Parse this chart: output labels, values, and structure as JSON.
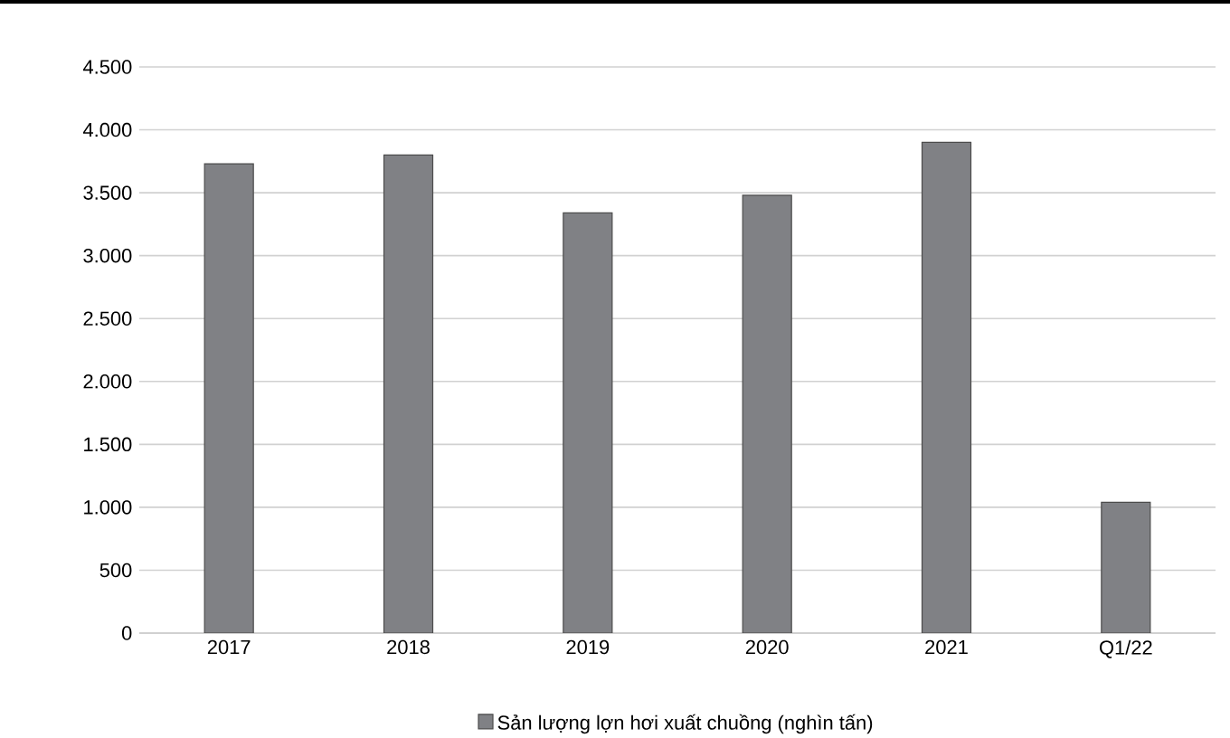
{
  "chart_data": {
    "type": "bar",
    "categories": [
      "2017",
      "2018",
      "2019",
      "2020",
      "2021",
      "Q1/22"
    ],
    "series": [
      {
        "name": "Sản lượng lợn hơi xuất chuồng (nghìn tấn)",
        "color": "#808185",
        "values": [
          3730,
          3800,
          3340,
          3480,
          3900,
          1040
        ]
      }
    ],
    "ylim": [
      0,
      4500
    ],
    "yticks": [
      {
        "value": 0,
        "label": "0"
      },
      {
        "value": 500,
        "label": "500"
      },
      {
        "value": 1000,
        "label": "1.000"
      },
      {
        "value": 1500,
        "label": "1.500"
      },
      {
        "value": 2000,
        "label": "2.000"
      },
      {
        "value": 2500,
        "label": "2.500"
      },
      {
        "value": 3000,
        "label": "3.000"
      },
      {
        "value": 3500,
        "label": "3.500"
      },
      {
        "value": 4000,
        "label": "4.000"
      },
      {
        "value": 4500,
        "label": "4.500"
      }
    ],
    "grid": "y",
    "legend": "bottom"
  }
}
